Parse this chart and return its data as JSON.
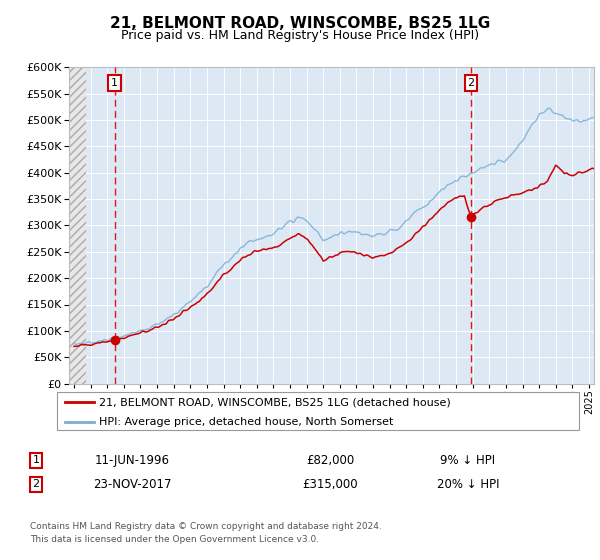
{
  "title": "21, BELMONT ROAD, WINSCOMBE, BS25 1LG",
  "subtitle": "Price paid vs. HM Land Registry's House Price Index (HPI)",
  "sale1_date": 1996.44,
  "sale1_price": 82000,
  "sale1_label": "11-JUN-1996",
  "sale1_pct": "9% ↓ HPI",
  "sale2_date": 2017.9,
  "sale2_price": 315000,
  "sale2_label": "23-NOV-2017",
  "sale2_pct": "20% ↓ HPI",
  "legend_line1": "21, BELMONT ROAD, WINSCOMBE, BS25 1LG (detached house)",
  "legend_line2": "HPI: Average price, detached house, North Somerset",
  "footer1": "Contains HM Land Registry data © Crown copyright and database right 2024.",
  "footer2": "This data is licensed under the Open Government Licence v3.0.",
  "table_row1": [
    "1",
    "11-JUN-1996",
    "£82,000",
    "9% ↓ HPI"
  ],
  "table_row2": [
    "2",
    "23-NOV-2017",
    "£315,000",
    "20% ↓ HPI"
  ],
  "red_line_color": "#cc0000",
  "blue_line_color": "#7aaed6",
  "grid_bg_color": "#dce9f5",
  "dashed_color": "#dd0000",
  "ylim": [
    0,
    600000
  ],
  "xlim_start": 1993.7,
  "xlim_end": 2025.3,
  "hpi_data": [
    [
      1994.0,
      75000
    ],
    [
      1994.5,
      77000
    ],
    [
      1995.0,
      78000
    ],
    [
      1995.5,
      80000
    ],
    [
      1996.0,
      82000
    ],
    [
      1996.5,
      86000
    ],
    [
      1997.0,
      90000
    ],
    [
      1997.5,
      95000
    ],
    [
      1998.0,
      100000
    ],
    [
      1998.5,
      105000
    ],
    [
      1999.0,
      112000
    ],
    [
      1999.5,
      120000
    ],
    [
      2000.0,
      130000
    ],
    [
      2000.5,
      142000
    ],
    [
      2001.0,
      155000
    ],
    [
      2001.5,
      168000
    ],
    [
      2002.0,
      185000
    ],
    [
      2002.5,
      205000
    ],
    [
      2003.0,
      225000
    ],
    [
      2003.5,
      240000
    ],
    [
      2004.0,
      255000
    ],
    [
      2004.5,
      268000
    ],
    [
      2005.0,
      272000
    ],
    [
      2005.5,
      278000
    ],
    [
      2006.0,
      283000
    ],
    [
      2006.5,
      295000
    ],
    [
      2007.0,
      308000
    ],
    [
      2007.5,
      316000
    ],
    [
      2008.0,
      310000
    ],
    [
      2008.5,
      292000
    ],
    [
      2009.0,
      272000
    ],
    [
      2009.5,
      278000
    ],
    [
      2010.0,
      285000
    ],
    [
      2010.5,
      288000
    ],
    [
      2011.0,
      285000
    ],
    [
      2011.5,
      282000
    ],
    [
      2012.0,
      280000
    ],
    [
      2012.5,
      283000
    ],
    [
      2013.0,
      288000
    ],
    [
      2013.5,
      295000
    ],
    [
      2014.0,
      308000
    ],
    [
      2014.5,
      322000
    ],
    [
      2015.0,
      335000
    ],
    [
      2015.5,
      348000
    ],
    [
      2016.0,
      362000
    ],
    [
      2016.5,
      375000
    ],
    [
      2017.0,
      385000
    ],
    [
      2017.5,
      393000
    ],
    [
      2018.0,
      400000
    ],
    [
      2018.5,
      408000
    ],
    [
      2019.0,
      415000
    ],
    [
      2019.5,
      420000
    ],
    [
      2020.0,
      425000
    ],
    [
      2020.5,
      440000
    ],
    [
      2021.0,
      460000
    ],
    [
      2021.5,
      488000
    ],
    [
      2022.0,
      510000
    ],
    [
      2022.5,
      520000
    ],
    [
      2023.0,
      515000
    ],
    [
      2023.5,
      505000
    ],
    [
      2024.0,
      500000
    ],
    [
      2024.5,
      498000
    ],
    [
      2025.0,
      502000
    ],
    [
      2025.3,
      505000
    ]
  ],
  "red_data": [
    [
      1994.0,
      72000
    ],
    [
      1994.5,
      73500
    ],
    [
      1995.0,
      74500
    ],
    [
      1995.5,
      77000
    ],
    [
      1996.0,
      79000
    ],
    [
      1996.44,
      82000
    ],
    [
      1996.5,
      83000
    ],
    [
      1997.0,
      87000
    ],
    [
      1997.5,
      91000
    ],
    [
      1998.0,
      96000
    ],
    [
      1998.5,
      101000
    ],
    [
      1999.0,
      107000
    ],
    [
      1999.5,
      114000
    ],
    [
      2000.0,
      122000
    ],
    [
      2000.5,
      133000
    ],
    [
      2001.0,
      144000
    ],
    [
      2001.5,
      155000
    ],
    [
      2002.0,
      170000
    ],
    [
      2002.5,
      188000
    ],
    [
      2003.0,
      206000
    ],
    [
      2003.5,
      220000
    ],
    [
      2004.0,
      234000
    ],
    [
      2004.5,
      246000
    ],
    [
      2005.0,
      252000
    ],
    [
      2005.5,
      255000
    ],
    [
      2006.0,
      258000
    ],
    [
      2006.5,
      265000
    ],
    [
      2007.0,
      275000
    ],
    [
      2007.5,
      282000
    ],
    [
      2008.0,
      275000
    ],
    [
      2008.5,
      255000
    ],
    [
      2009.0,
      232000
    ],
    [
      2009.5,
      238000
    ],
    [
      2010.0,
      248000
    ],
    [
      2010.5,
      252000
    ],
    [
      2011.0,
      248000
    ],
    [
      2011.5,
      244000
    ],
    [
      2012.0,
      240000
    ],
    [
      2012.5,
      243000
    ],
    [
      2013.0,
      248000
    ],
    [
      2013.5,
      256000
    ],
    [
      2014.0,
      268000
    ],
    [
      2014.5,
      282000
    ],
    [
      2015.0,
      298000
    ],
    [
      2015.5,
      313000
    ],
    [
      2016.0,
      330000
    ],
    [
      2016.5,
      343000
    ],
    [
      2017.0,
      352000
    ],
    [
      2017.5,
      358000
    ],
    [
      2017.9,
      315000
    ],
    [
      2018.0,
      320000
    ],
    [
      2018.5,
      330000
    ],
    [
      2019.0,
      340000
    ],
    [
      2019.5,
      348000
    ],
    [
      2020.0,
      352000
    ],
    [
      2020.5,
      358000
    ],
    [
      2021.0,
      362000
    ],
    [
      2021.5,
      368000
    ],
    [
      2022.0,
      375000
    ],
    [
      2022.5,
      385000
    ],
    [
      2023.0,
      415000
    ],
    [
      2023.5,
      400000
    ],
    [
      2024.0,
      395000
    ],
    [
      2024.5,
      400000
    ],
    [
      2025.0,
      405000
    ],
    [
      2025.3,
      408000
    ]
  ]
}
